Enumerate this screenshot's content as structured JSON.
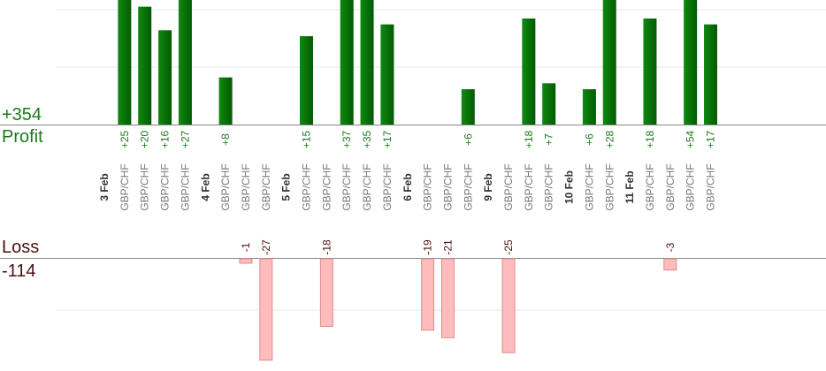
{
  "summary": {
    "profit_total": "+354",
    "profit_label": "Profit",
    "loss_label": "Loss",
    "loss_total": "-114"
  },
  "colors": {
    "profit_bar": "#0a6e0a",
    "profit_text": "#1a7a1a",
    "loss_bar": "#ffbcbc",
    "loss_text": "#4a1010",
    "grid": "#e8e8e8",
    "axis": "#888888",
    "date_text": "#333333",
    "pair_text": "#777777"
  },
  "chart_data": {
    "type": "bar",
    "grid": true,
    "profit_ylim": [
      0,
      30
    ],
    "loss_ylim": [
      -27,
      0
    ],
    "categories": [
      {
        "date": "3 Feb",
        "pair": null,
        "value": null
      },
      {
        "date": null,
        "pair": "GBP/CHF",
        "value": 25,
        "label": "+25"
      },
      {
        "date": null,
        "pair": "GBP/CHF",
        "value": 20,
        "label": "+20"
      },
      {
        "date": null,
        "pair": "GBP/CHF",
        "value": 16,
        "label": "+16"
      },
      {
        "date": null,
        "pair": "GBP/CHF",
        "value": 27,
        "label": "+27"
      },
      {
        "date": "4 Feb",
        "pair": null,
        "value": null
      },
      {
        "date": null,
        "pair": "GBP/CHF",
        "value": 8,
        "label": "+8"
      },
      {
        "date": null,
        "pair": "GBP/CHF",
        "value": -1,
        "label": "-1"
      },
      {
        "date": null,
        "pair": "GBP/CHF",
        "value": -27,
        "label": "-27"
      },
      {
        "date": "5 Feb",
        "pair": null,
        "value": null
      },
      {
        "date": null,
        "pair": "GBP/CHF",
        "value": 15,
        "label": "+15"
      },
      {
        "date": null,
        "pair": "GBP/CHF",
        "value": -18,
        "label": "-18"
      },
      {
        "date": null,
        "pair": "GBP/CHF",
        "value": 37,
        "label": "+37"
      },
      {
        "date": null,
        "pair": "GBP/CHF",
        "value": 35,
        "label": "+35"
      },
      {
        "date": null,
        "pair": "GBP/CHF",
        "value": 17,
        "label": "+17"
      },
      {
        "date": "6 Feb",
        "pair": null,
        "value": null
      },
      {
        "date": null,
        "pair": "GBP/CHF",
        "value": -19,
        "label": "-19"
      },
      {
        "date": null,
        "pair": "GBP/CHF",
        "value": -21,
        "label": "-21"
      },
      {
        "date": null,
        "pair": "GBP/CHF",
        "value": 6,
        "label": "+6"
      },
      {
        "date": "9 Feb",
        "pair": null,
        "value": null
      },
      {
        "date": null,
        "pair": "GBP/CHF",
        "value": -25,
        "label": "-25"
      },
      {
        "date": null,
        "pair": "GBP/CHF",
        "value": 18,
        "label": "+18"
      },
      {
        "date": null,
        "pair": "GBP/CHF",
        "value": 7,
        "label": "+7"
      },
      {
        "date": "10 Feb",
        "pair": null,
        "value": null
      },
      {
        "date": null,
        "pair": "GBP/CHF",
        "value": 6,
        "label": "+6"
      },
      {
        "date": null,
        "pair": "GBP/CHF",
        "value": 28,
        "label": "+28"
      },
      {
        "date": "11 Feb",
        "pair": null,
        "value": null
      },
      {
        "date": null,
        "pair": "GBP/CHF",
        "value": 18,
        "label": "+18"
      },
      {
        "date": null,
        "pair": "GBP/CHF",
        "value": -3,
        "label": "-3"
      },
      {
        "date": null,
        "pair": "GBP/CHF",
        "value": 54,
        "label": "+54"
      },
      {
        "date": null,
        "pair": "GBP/CHF",
        "value": 17,
        "label": "+17"
      }
    ]
  }
}
